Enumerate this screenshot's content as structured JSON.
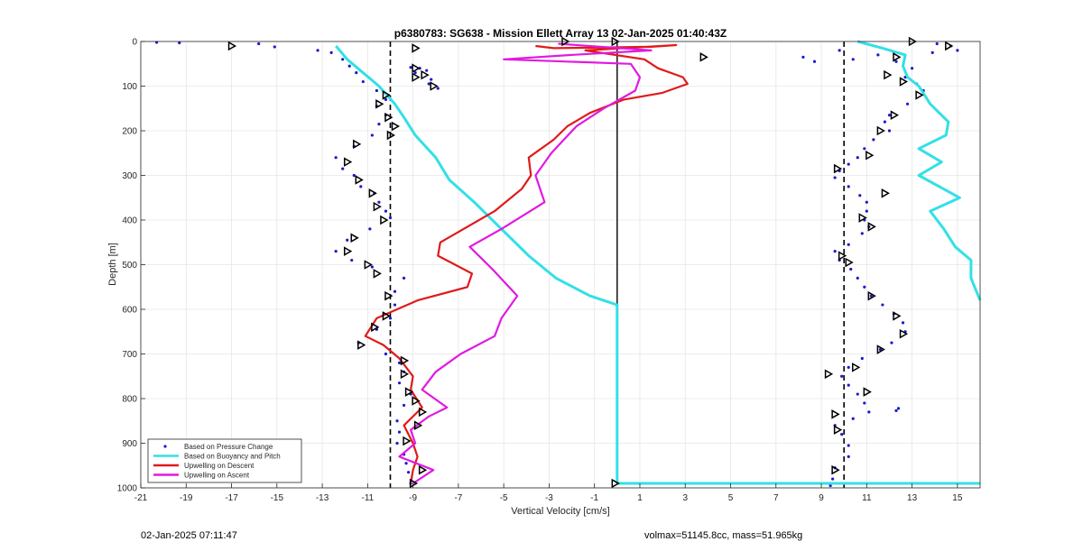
{
  "footer": {
    "timestamp": "02-Jan-2025 07:11:47",
    "vol_mass": "volmax=51145.8cc, mass=51.965kg"
  },
  "chart_data": {
    "type": "line",
    "title": "p6380783: SG638 - Mission Ellett Array 13 02-Jan-2025 01:40:43Z",
    "xlabel": "Vertical Velocity [cm/s]",
    "ylabel": "Depth [m]",
    "xlim": [
      -21,
      16
    ],
    "ylim": [
      1000,
      0
    ],
    "y_reversed": true,
    "grid": true,
    "legend_position": "bottom-left",
    "x_ticks": [
      -21,
      -19,
      -17,
      -15,
      -13,
      -11,
      -9,
      -7,
      -5,
      -3,
      -1,
      1,
      3,
      5,
      7,
      9,
      11,
      13,
      15
    ],
    "y_ticks": [
      0,
      100,
      200,
      300,
      400,
      500,
      600,
      700,
      800,
      900,
      1000
    ],
    "reference_lines": [
      {
        "style": "dashed",
        "color": "#000000",
        "x": -10
      },
      {
        "style": "dashed",
        "color": "#000000",
        "x": 10
      },
      {
        "style": "solid",
        "color": "#000000",
        "x": 0,
        "depth_range": [
          0,
          590
        ]
      }
    ],
    "series": [
      {
        "name": "Based on Pressure Change",
        "style": "dots",
        "color": "#1a1acc",
        "points": [
          [
            -20.3,
            2
          ],
          [
            -19.3,
            3
          ],
          [
            -15.8,
            5
          ],
          [
            -15.1,
            12
          ],
          [
            -13.2,
            20
          ],
          [
            -12.6,
            25
          ],
          [
            -12.1,
            40
          ],
          [
            -11.8,
            55
          ],
          [
            -11.5,
            70
          ],
          [
            -11.2,
            90
          ],
          [
            -10.6,
            110
          ],
          [
            -10.2,
            130
          ],
          [
            -10.6,
            145
          ],
          [
            -10.2,
            165
          ],
          [
            -10.5,
            185
          ],
          [
            -10.8,
            210
          ],
          [
            -11.6,
            235
          ],
          [
            -12.4,
            260
          ],
          [
            -12.1,
            285
          ],
          [
            -11.6,
            300
          ],
          [
            -11.3,
            325
          ],
          [
            -10.7,
            340
          ],
          [
            -10.5,
            360
          ],
          [
            -10.2,
            380
          ],
          [
            -10.0,
            395
          ],
          [
            -10.9,
            420
          ],
          [
            -11.9,
            445
          ],
          [
            -12.4,
            470
          ],
          [
            -11.7,
            490
          ],
          [
            -10.8,
            505
          ],
          [
            -9.4,
            530
          ],
          [
            -9.8,
            560
          ],
          [
            -9.8,
            590
          ],
          [
            -10.0,
            620
          ],
          [
            -10.6,
            645
          ],
          [
            -11.4,
            675
          ],
          [
            -10.2,
            700
          ],
          [
            -9.6,
            720
          ],
          [
            -9.4,
            740
          ],
          [
            -9.6,
            765
          ],
          [
            -9.1,
            790
          ],
          [
            -9.4,
            815
          ],
          [
            -9.7,
            850
          ],
          [
            -9.6,
            875
          ],
          [
            -9.7,
            900
          ],
          [
            -9.4,
            925
          ],
          [
            -9.3,
            945
          ],
          [
            -9.2,
            965
          ],
          [
            -9.1,
            990
          ],
          [
            -9.1,
            58
          ],
          [
            -8.9,
            70
          ],
          [
            -8.2,
            85
          ],
          [
            -8.3,
            95
          ],
          [
            -7.9,
            105
          ],
          [
            -8.7,
            60
          ],
          [
            -8.4,
            65
          ],
          [
            8.2,
            35
          ],
          [
            8.7,
            45
          ],
          [
            9.8,
            20
          ],
          [
            10.4,
            40
          ],
          [
            11.5,
            30
          ],
          [
            12.3,
            45
          ],
          [
            13.0,
            60
          ],
          [
            12.7,
            80
          ],
          [
            13.2,
            95
          ],
          [
            13.5,
            110
          ],
          [
            12.8,
            140
          ],
          [
            12.0,
            165
          ],
          [
            11.8,
            180
          ],
          [
            12.0,
            200
          ],
          [
            11.3,
            220
          ],
          [
            10.9,
            240
          ],
          [
            10.6,
            260
          ],
          [
            10.2,
            275
          ],
          [
            9.8,
            290
          ],
          [
            9.6,
            305
          ],
          [
            10.2,
            325
          ],
          [
            10.7,
            345
          ],
          [
            11.0,
            360
          ],
          [
            11.0,
            380
          ],
          [
            10.9,
            400
          ],
          [
            11.1,
            415
          ],
          [
            10.8,
            430
          ],
          [
            10.2,
            455
          ],
          [
            9.6,
            470
          ],
          [
            9.8,
            490
          ],
          [
            10.3,
            510
          ],
          [
            10.6,
            530
          ],
          [
            10.9,
            550
          ],
          [
            11.2,
            570
          ],
          [
            11.7,
            590
          ],
          [
            12.2,
            610
          ],
          [
            12.6,
            630
          ],
          [
            12.7,
            650
          ],
          [
            12.1,
            675
          ],
          [
            11.6,
            690
          ],
          [
            10.8,
            710
          ],
          [
            10.2,
            730
          ],
          [
            9.9,
            750
          ],
          [
            10.2,
            770
          ],
          [
            10.6,
            790
          ],
          [
            10.9,
            810
          ],
          [
            11.1,
            830
          ],
          [
            10.4,
            845
          ],
          [
            9.6,
            860
          ],
          [
            9.9,
            880
          ],
          [
            10.2,
            905
          ],
          [
            10.2,
            930
          ],
          [
            9.6,
            955
          ],
          [
            9.5,
            980
          ],
          [
            9.4,
            995
          ],
          [
            12.3,
            827
          ],
          [
            12.4,
            822
          ],
          [
            15.0,
            20
          ],
          [
            14.7,
            10
          ],
          [
            14.1,
            5
          ],
          [
            13.9,
            25
          ]
        ]
      },
      {
        "name": "Based on Buoyancy and Pitch",
        "style": "line",
        "color": "#33e0e6",
        "segments": [
          [
            [
              -12.4,
              10
            ],
            [
              -11.9,
              40
            ],
            [
              -11.2,
              70
            ],
            [
              -10.5,
              100
            ],
            [
              -9.8,
              140
            ],
            [
              -9.4,
              170
            ],
            [
              -8.9,
              210
            ],
            [
              -8.0,
              260
            ],
            [
              -7.4,
              310
            ],
            [
              -6.3,
              360
            ],
            [
              -5.1,
              420
            ],
            [
              -3.9,
              480
            ],
            [
              -2.7,
              530
            ],
            [
              -1.2,
              570
            ],
            [
              0.0,
              590
            ],
            [
              0.0,
              990
            ]
          ],
          [
            [
              0.0,
              990
            ],
            [
              16.0,
              990
            ]
          ],
          [
            [
              10.6,
              0
            ],
            [
              11.7,
              15
            ],
            [
              12.7,
              30
            ],
            [
              12.6,
              55
            ],
            [
              12.8,
              80
            ],
            [
              13.3,
              100
            ],
            [
              13.8,
              140
            ],
            [
              14.6,
              180
            ],
            [
              14.5,
              210
            ],
            [
              13.3,
              240
            ],
            [
              14.3,
              270
            ],
            [
              13.3,
              300
            ],
            [
              15.1,
              350
            ],
            [
              13.8,
              380
            ],
            [
              14.4,
              420
            ],
            [
              14.9,
              460
            ],
            [
              15.6,
              490
            ],
            [
              15.6,
              530
            ],
            [
              16.0,
              580
            ]
          ]
        ]
      },
      {
        "name": "Upwelling on Descent",
        "style": "line",
        "color": "#e01a1a",
        "points": [
          [
            -3.6,
            10
          ],
          [
            -2.8,
            15
          ],
          [
            1.5,
            12
          ],
          [
            2.6,
            8
          ],
          [
            -1.4,
            20
          ],
          [
            1.2,
            40
          ],
          [
            1.8,
            60
          ],
          [
            2.9,
            80
          ],
          [
            3.1,
            95
          ],
          [
            2.0,
            115
          ],
          [
            0.3,
            130
          ],
          [
            -1.2,
            160
          ],
          [
            -2.2,
            190
          ],
          [
            -2.8,
            220
          ],
          [
            -3.9,
            260
          ],
          [
            -3.8,
            300
          ],
          [
            -4.2,
            330
          ],
          [
            -5.4,
            380
          ],
          [
            -7.8,
            450
          ],
          [
            -7.9,
            480
          ],
          [
            -6.4,
            520
          ],
          [
            -6.6,
            550
          ],
          [
            -8.8,
            580
          ],
          [
            -10.6,
            620
          ],
          [
            -11.1,
            660
          ],
          [
            -10.3,
            680
          ],
          [
            -9.6,
            710
          ],
          [
            -9.0,
            750
          ],
          [
            -9.1,
            780
          ],
          [
            -8.6,
            820
          ],
          [
            -9.4,
            860
          ],
          [
            -9.0,
            900
          ],
          [
            -8.8,
            930
          ],
          [
            -9.0,
            960
          ],
          [
            -9.1,
            990
          ]
        ]
      },
      {
        "name": "Upwelling on Ascent",
        "style": "line",
        "color": "#e01ae0",
        "points": [
          [
            -9.0,
            990
          ],
          [
            -8.1,
            960
          ],
          [
            -9.6,
            930
          ],
          [
            -8.9,
            900
          ],
          [
            -9.1,
            870
          ],
          [
            -8.3,
            840
          ],
          [
            -7.5,
            820
          ],
          [
            -8.6,
            780
          ],
          [
            -8.0,
            740
          ],
          [
            -6.9,
            700
          ],
          [
            -5.4,
            660
          ],
          [
            -5.1,
            620
          ],
          [
            -4.4,
            570
          ],
          [
            -5.5,
            510
          ],
          [
            -6.5,
            460
          ],
          [
            -5.1,
            420
          ],
          [
            -3.2,
            360
          ],
          [
            -3.6,
            300
          ],
          [
            -2.9,
            250
          ],
          [
            -1.8,
            190
          ],
          [
            -0.6,
            150
          ],
          [
            0.8,
            110
          ],
          [
            1.0,
            80
          ],
          [
            0.6,
            50
          ],
          [
            -5.0,
            40
          ],
          [
            -2.0,
            30
          ],
          [
            1.5,
            20
          ],
          [
            -2.6,
            5
          ]
        ]
      }
    ],
    "markers": [
      [
        -17.0,
        10
      ],
      [
        -8.9,
        15
      ],
      [
        -2.3,
        0
      ],
      [
        -0.1,
        0
      ],
      [
        13.0,
        0
      ],
      [
        14.6,
        10
      ],
      [
        12.3,
        35
      ],
      [
        -8.9,
        60
      ],
      [
        -8.5,
        75
      ],
      [
        -8.9,
        80
      ],
      [
        -8.1,
        100
      ],
      [
        -10.2,
        120
      ],
      [
        -10.5,
        140
      ],
      [
        -10.1,
        170
      ],
      [
        -9.8,
        190
      ],
      [
        -10.0,
        210
      ],
      [
        -11.5,
        230
      ],
      [
        -11.9,
        270
      ],
      [
        -11.4,
        310
      ],
      [
        -10.8,
        340
      ],
      [
        -10.6,
        370
      ],
      [
        -10.3,
        400
      ],
      [
        -11.6,
        440
      ],
      [
        -11.9,
        470
      ],
      [
        -11.0,
        500
      ],
      [
        -10.6,
        520
      ],
      [
        -10.1,
        570
      ],
      [
        -10.2,
        615
      ],
      [
        -10.7,
        640
      ],
      [
        -11.3,
        680
      ],
      [
        -9.4,
        715
      ],
      [
        -9.4,
        745
      ],
      [
        -9.2,
        785
      ],
      [
        -8.9,
        805
      ],
      [
        -8.6,
        830
      ],
      [
        -8.8,
        860
      ],
      [
        -9.3,
        895
      ],
      [
        -8.6,
        960
      ],
      [
        -9.0,
        990
      ],
      [
        -0.1,
        990
      ],
      [
        11.9,
        75
      ],
      [
        12.6,
        90
      ],
      [
        13.3,
        120
      ],
      [
        12.2,
        165
      ],
      [
        11.6,
        200
      ],
      [
        11.1,
        255
      ],
      [
        9.7,
        285
      ],
      [
        11.8,
        340
      ],
      [
        10.8,
        395
      ],
      [
        11.2,
        415
      ],
      [
        9.9,
        480
      ],
      [
        10.2,
        495
      ],
      [
        11.2,
        570
      ],
      [
        12.3,
        615
      ],
      [
        12.6,
        655
      ],
      [
        11.6,
        690
      ],
      [
        10.5,
        730
      ],
      [
        9.3,
        745
      ],
      [
        11.0,
        785
      ],
      [
        9.6,
        835
      ],
      [
        9.7,
        870
      ],
      [
        9.6,
        960
      ],
      [
        3.8,
        35
      ]
    ],
    "legend": [
      {
        "label": "Based on Pressure Change",
        "color": "#1a1acc",
        "kind": "dot"
      },
      {
        "label": "Based on Buoyancy and Pitch",
        "color": "#33e0e6",
        "kind": "line"
      },
      {
        "label": "Upwelling on Descent",
        "color": "#e01a1a",
        "kind": "line"
      },
      {
        "label": "Upwelling on Ascent",
        "color": "#e01ae0",
        "kind": "line"
      }
    ]
  }
}
